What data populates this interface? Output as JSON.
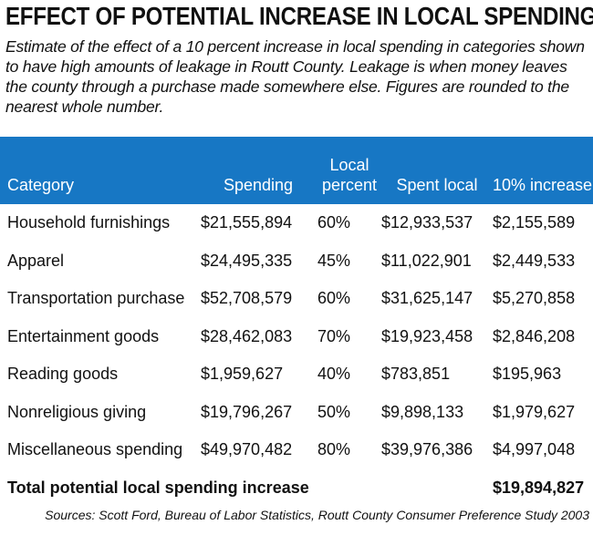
{
  "chart_data": {
    "type": "table",
    "title": "EFFECT OF POTENTIAL INCREASE IN LOCAL SPENDING",
    "subtitle": "Estimate of the effect of a 10 percent increase in local spending in categories shown to have high amounts of leakage in Routt County. Leakage is when money leaves the county through a purchase made somewhere else. Figures are rounded to the nearest whole number.",
    "columns": [
      "Category",
      "Spending",
      "Local percent",
      "Spent local",
      "10% increase"
    ],
    "rows": [
      [
        "Household furnishings",
        "$21,555,894",
        "60%",
        "$12,933,537",
        "$2,155,589"
      ],
      [
        "Apparel",
        "$24,495,335",
        "45%",
        "$11,022,901",
        "$2,449,533"
      ],
      [
        "Transportation purchase",
        "$52,708,579",
        "60%",
        "$31,625,147",
        "$5,270,858"
      ],
      [
        "Entertainment goods",
        "$28,462,083",
        "70%",
        "$19,923,458",
        "$2,846,208"
      ],
      [
        "Reading goods",
        "$1,959,627",
        "40%",
        "$783,851",
        "$195,963"
      ],
      [
        "Nonreligious giving",
        "$19,796,267",
        "50%",
        "$9,898,133",
        "$1,979,627"
      ],
      [
        "Miscellaneous spending",
        "$49,970,482",
        "80%",
        "$39,976,386",
        "$4,997,048"
      ]
    ],
    "total_label": "Total potential local spending increase",
    "total_value": "$19,894,827",
    "source": "Sources: Scott Ford, Bureau of Labor Statistics, Routt County Consumer Preference Study 2003",
    "header_color": "#1777c4"
  }
}
